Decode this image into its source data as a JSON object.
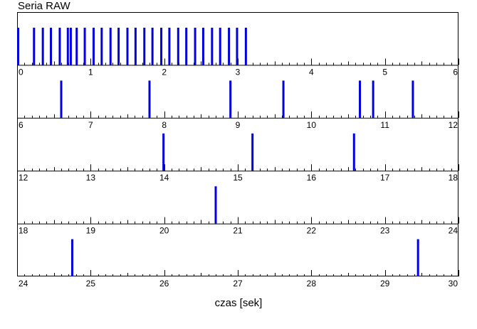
{
  "chart_data": {
    "type": "event-raster",
    "title": "Seria RAW",
    "xlabel": "czas [sek]",
    "segment_length": 6,
    "rows": [
      {
        "xlim": [
          0,
          6
        ]
      },
      {
        "xlim": [
          6,
          12
        ]
      },
      {
        "xlim": [
          12,
          18
        ]
      },
      {
        "xlim": [
          18,
          24
        ]
      },
      {
        "xlim": [
          24,
          30
        ]
      }
    ],
    "events": [
      0.0,
      0.23,
      0.35,
      0.46,
      0.58,
      0.69,
      0.73,
      0.81,
      0.92,
      1.04,
      1.15,
      1.27,
      1.38,
      1.5,
      1.61,
      1.73,
      1.84,
      1.96,
      2.07,
      2.19,
      2.3,
      2.42,
      2.53,
      2.65,
      2.76,
      2.88,
      2.99,
      3.11,
      6.6,
      7.8,
      8.9,
      9.62,
      10.66,
      10.84,
      11.38,
      13.99,
      15.2,
      16.58,
      20.7,
      24.75,
      29.45
    ],
    "tick_labels": [
      [
        "0",
        "1",
        "2",
        "3",
        "4",
        "5",
        "6"
      ],
      [
        "6",
        "7",
        "8",
        "9",
        "10",
        "11",
        "12"
      ],
      [
        "12",
        "13",
        "14",
        "15",
        "16",
        "17",
        "18"
      ],
      [
        "18",
        "19",
        "20",
        "21",
        "22",
        "23",
        "24"
      ],
      [
        "24",
        "25",
        "26",
        "27",
        "28",
        "29",
        "30"
      ]
    ],
    "minor_ticks_per_unit": 10,
    "event_color": "#0000dd",
    "grid": false
  }
}
